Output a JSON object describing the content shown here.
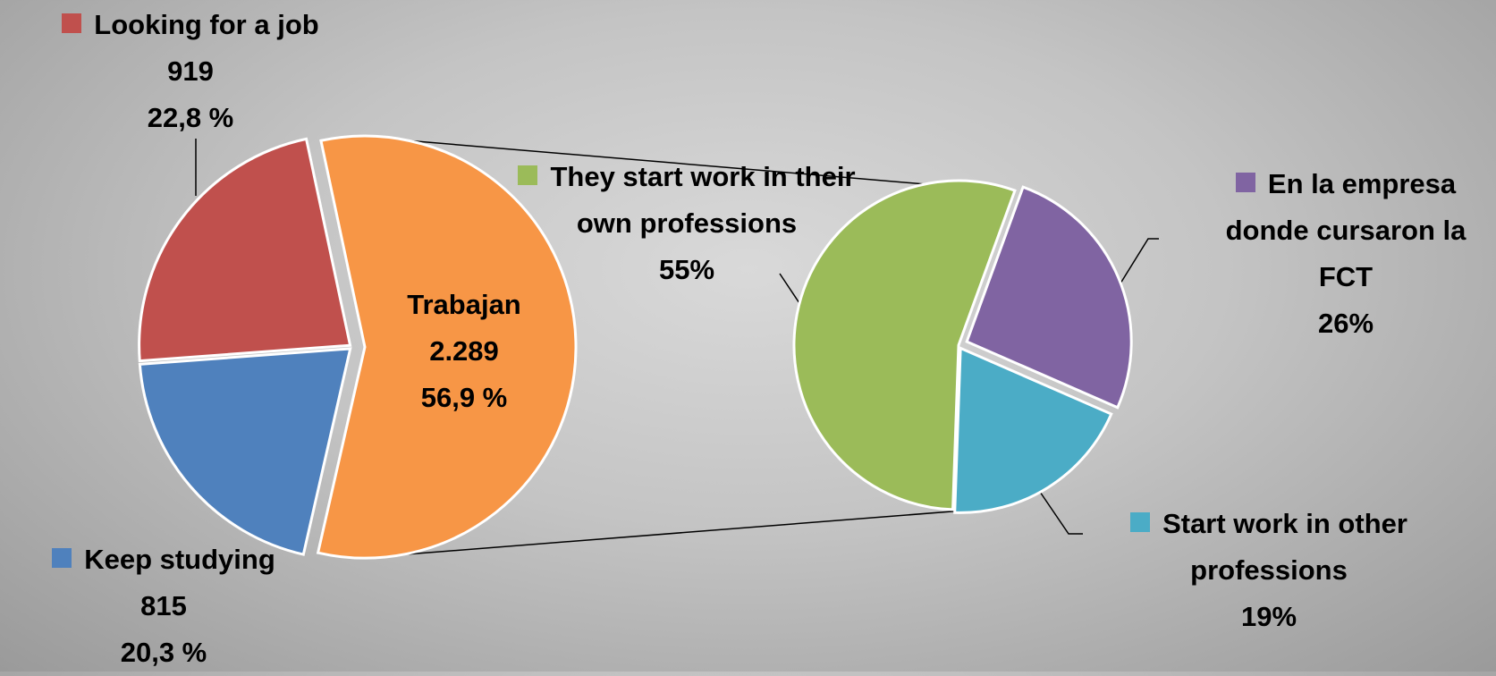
{
  "chart_data": [
    {
      "type": "pie",
      "categories": [
        "Looking for a job",
        "Keep studying",
        "Trabajan"
      ],
      "values": [
        919,
        815,
        2289
      ],
      "value_labels": [
        "919",
        "815",
        "2.289"
      ],
      "percentages": [
        22.8,
        20.3,
        56.9
      ],
      "percentage_labels": [
        "22,8 %",
        "20,3 %",
        "56,9 %"
      ],
      "colors": [
        "#c0504d",
        "#4f81bd",
        "#f79646"
      ]
    },
    {
      "type": "pie",
      "categories": [
        "They start work in their own professions",
        "En la empresa donde cursaron la FCT",
        "Start work in other professions"
      ],
      "values": [
        55,
        26,
        19
      ],
      "value_labels": [
        "55%",
        "26%",
        "19%"
      ],
      "colors": [
        "#9bbb59",
        "#8064a2",
        "#4bacc6"
      ]
    }
  ]
}
